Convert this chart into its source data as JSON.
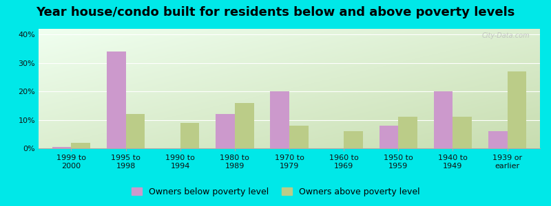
{
  "title": "Year house/condo built for residents below and above poverty levels",
  "categories": [
    "1999 to\n2000",
    "1995 to\n1998",
    "1990 to\n1994",
    "1980 to\n1989",
    "1970 to\n1979",
    "1960 to\n1969",
    "1950 to\n1959",
    "1940 to\n1949",
    "1939 or\nearlier"
  ],
  "below_poverty": [
    0.5,
    34.0,
    0.0,
    12.0,
    20.0,
    0.0,
    8.0,
    20.0,
    6.0
  ],
  "above_poverty": [
    2.0,
    12.0,
    9.0,
    16.0,
    8.0,
    6.0,
    11.0,
    11.0,
    27.0
  ],
  "below_color": "#cc99cc",
  "above_color": "#bbcc88",
  "background_outer": "#00e8e8",
  "background_inner_top_left": "#f0fff0",
  "background_inner_bottom_right": "#c8ddb0",
  "ylim": [
    0,
    42
  ],
  "yticks": [
    0,
    10,
    20,
    30,
    40
  ],
  "ytick_labels": [
    "0%",
    "10%",
    "20%",
    "30%",
    "40%"
  ],
  "bar_width": 0.35,
  "title_fontsize": 13,
  "tick_fontsize": 8,
  "legend_fontsize": 9,
  "legend_below_label": "Owners below poverty level",
  "legend_above_label": "Owners above poverty level"
}
